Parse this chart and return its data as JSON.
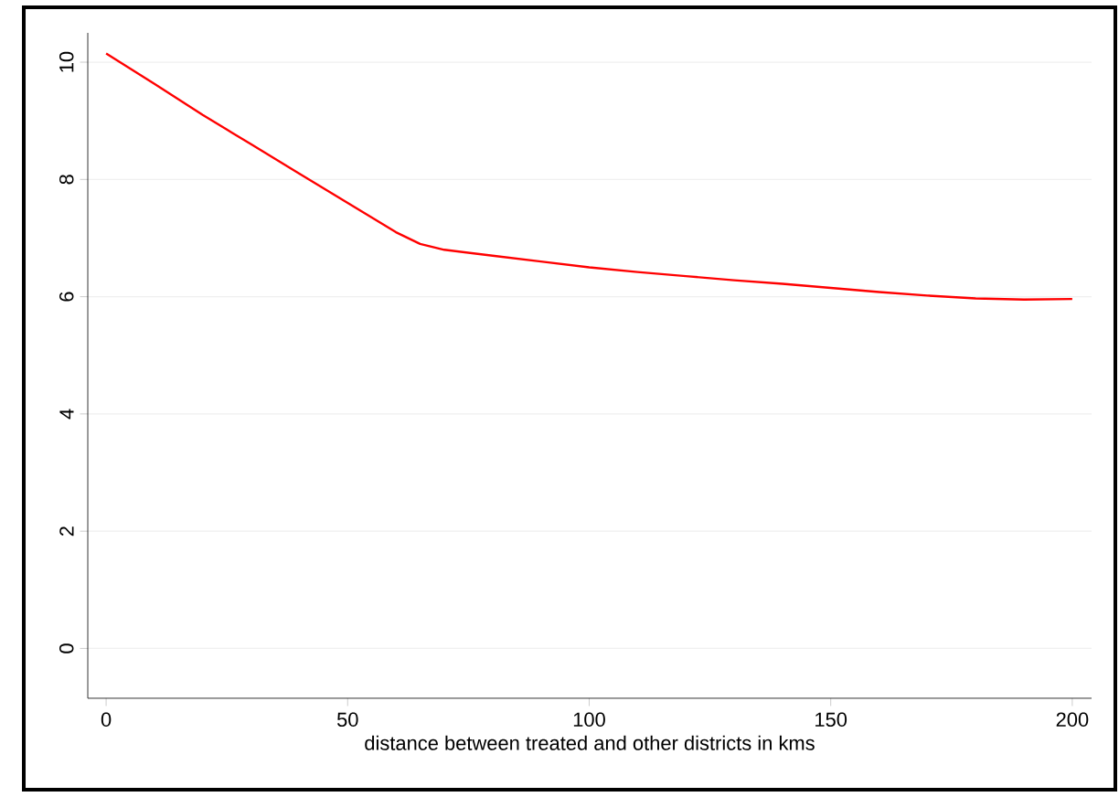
{
  "chart_data": {
    "type": "line",
    "xlabel": "distance between treated and other districts in kms",
    "x": [
      0,
      10,
      20,
      25,
      30,
      40,
      50,
      60,
      65,
      70,
      80,
      90,
      100,
      110,
      120,
      130,
      140,
      150,
      160,
      170,
      180,
      190,
      200
    ],
    "series": [
      {
        "color": "#ff0000",
        "values": [
          10.15,
          9.63,
          9.1,
          8.85,
          8.6,
          8.1,
          7.6,
          7.1,
          6.9,
          6.8,
          6.7,
          6.6,
          6.5,
          6.42,
          6.35,
          6.28,
          6.22,
          6.15,
          6.08,
          6.02,
          5.97,
          5.95,
          5.96
        ]
      }
    ],
    "xlim": [
      -3.8,
      204
    ],
    "ylim": [
      -0.85,
      10.5
    ],
    "xticks": [
      0,
      50,
      100,
      150,
      200
    ],
    "yticks": [
      0,
      2,
      4,
      6,
      8,
      10
    ],
    "grid": "y",
    "marker": "none",
    "line_style": "solid"
  }
}
